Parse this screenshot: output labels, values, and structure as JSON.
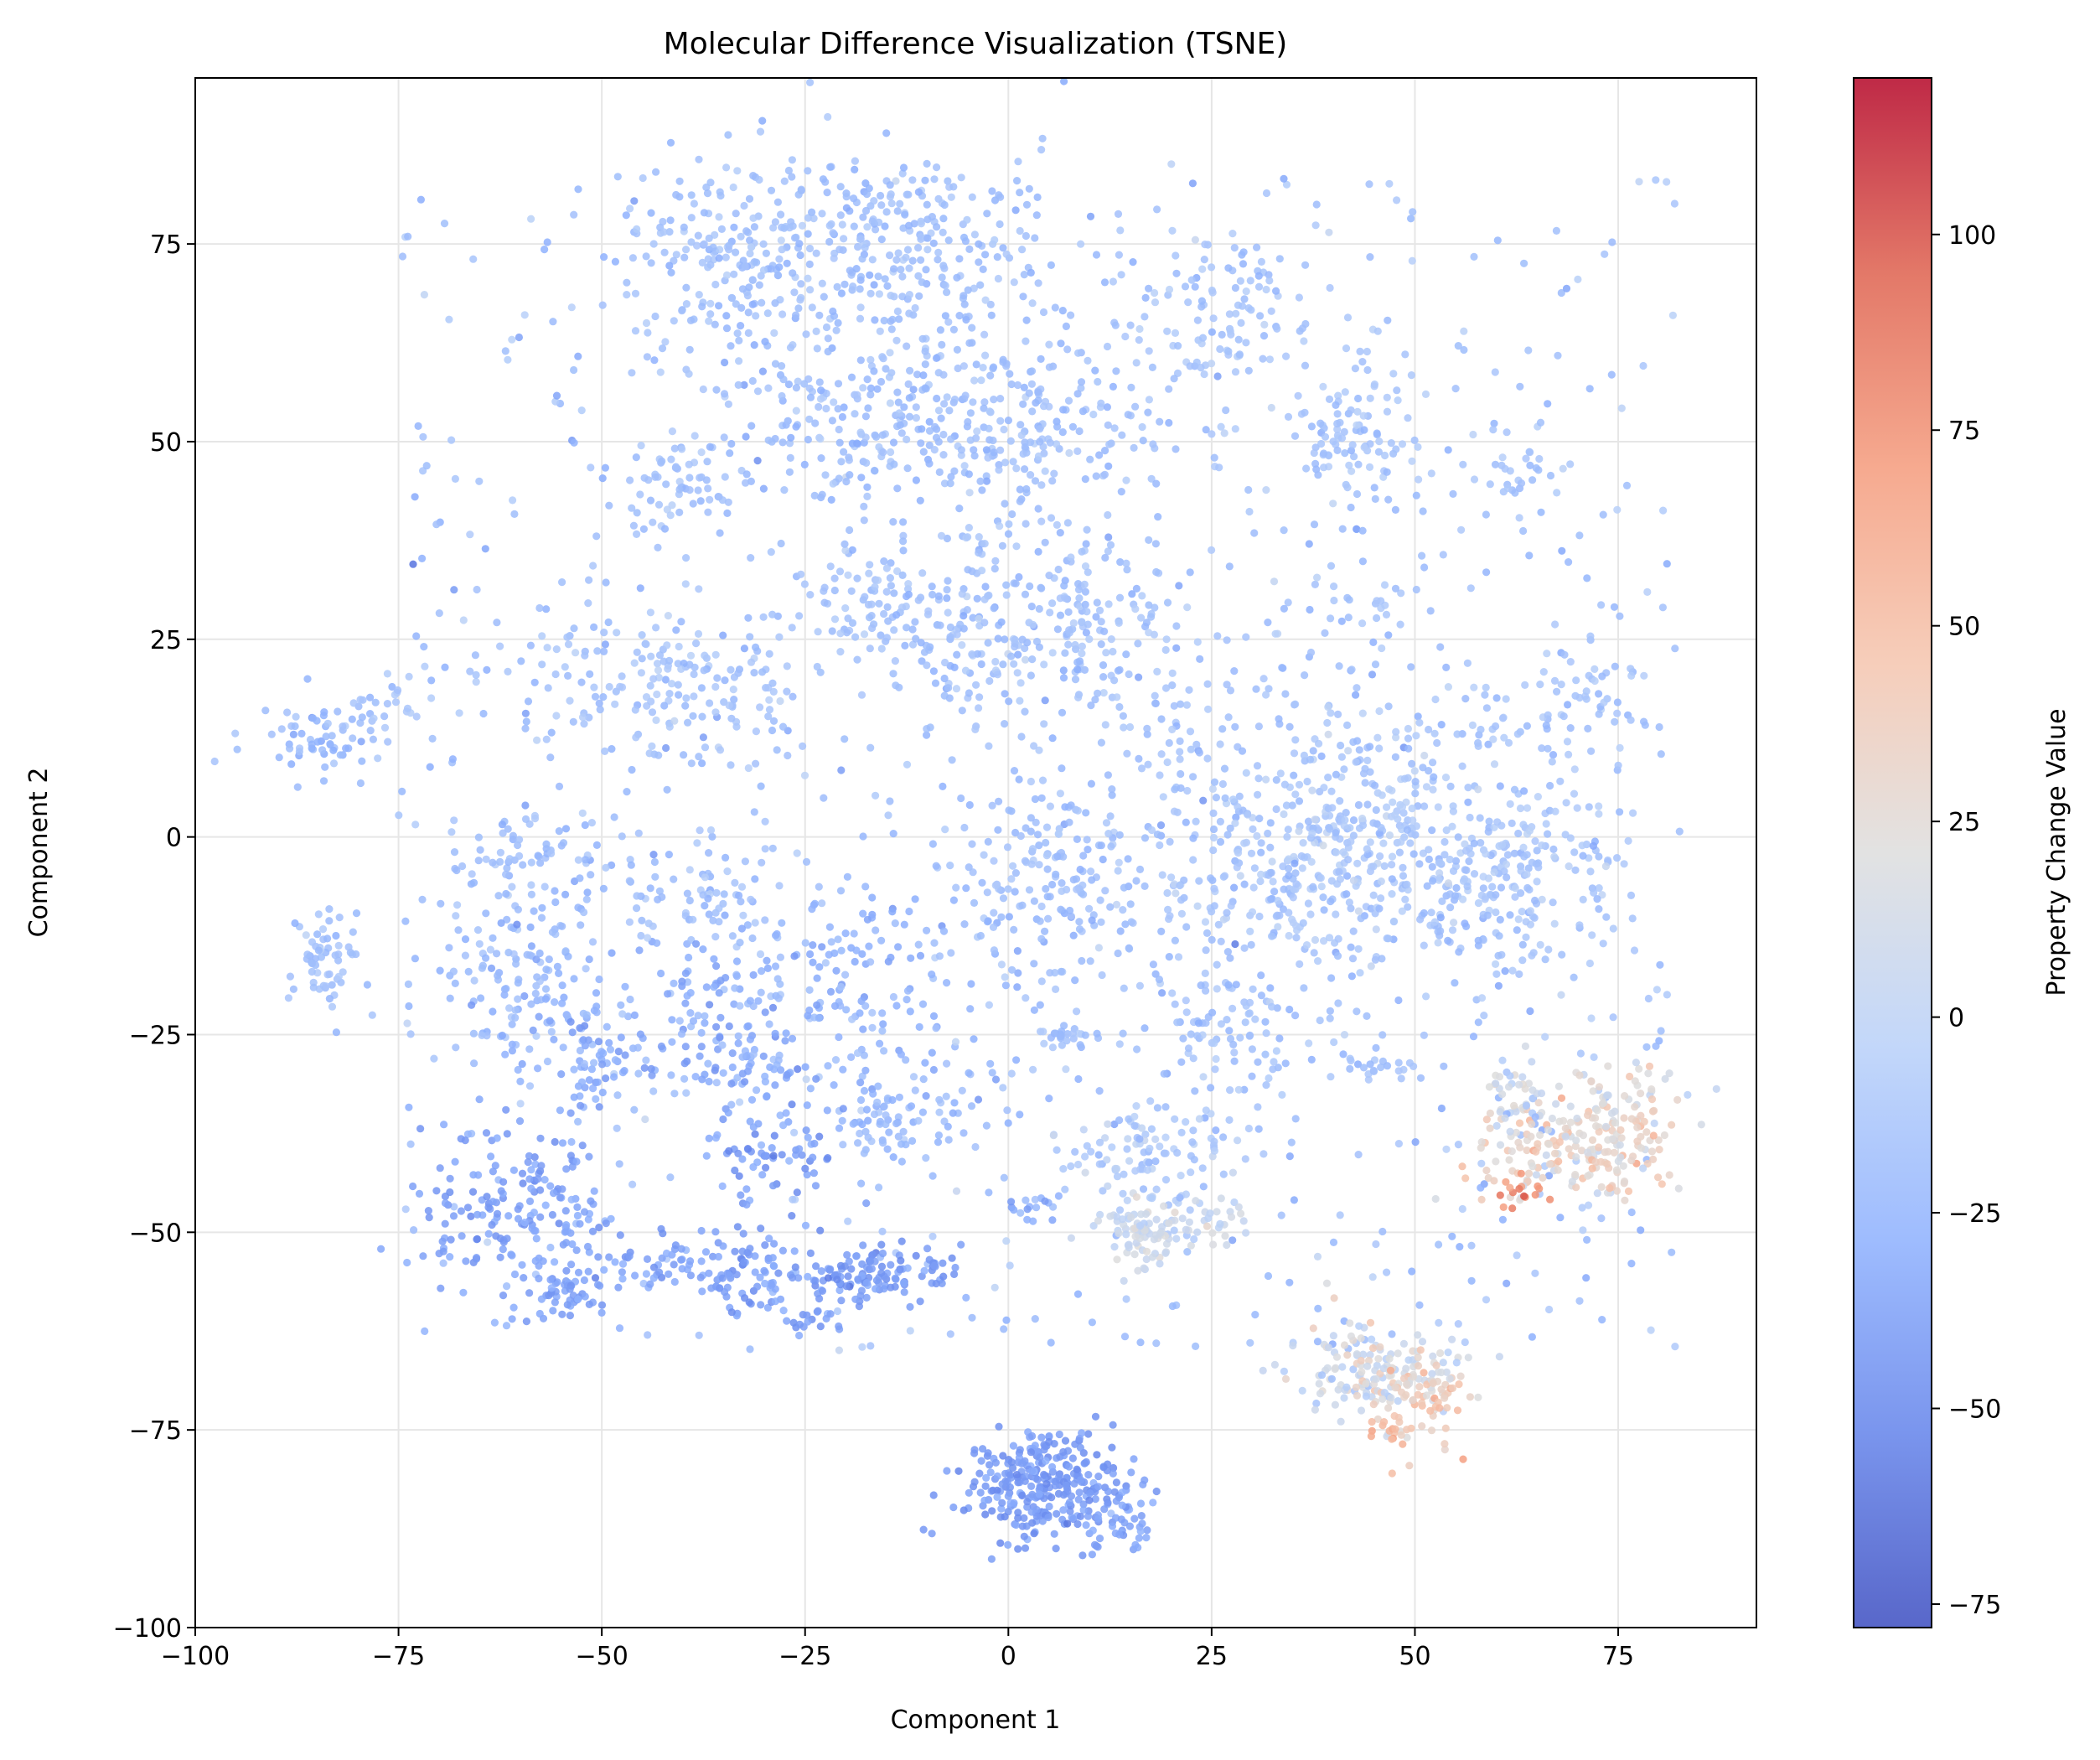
{
  "chart_data": {
    "type": "scatter",
    "title": "Molecular Difference Visualization (TSNE)",
    "xlabel": "Component 1",
    "ylabel": "Component 2",
    "xlim": [
      -100,
      92
    ],
    "ylim": [
      -100,
      96
    ],
    "xticks": [
      -100,
      -75,
      -50,
      -25,
      0,
      25,
      50,
      75
    ],
    "yticks": [
      -100,
      -75,
      -50,
      -25,
      0,
      25,
      50,
      75
    ],
    "grid": true,
    "colormap": "coolwarm",
    "colorbar": {
      "label": "Property Change Value",
      "range": [
        -78,
        120
      ],
      "ticks": [
        -75,
        -50,
        -25,
        0,
        25,
        50,
        75,
        100
      ]
    },
    "clusters": [
      {
        "cx": -13,
        "cy": 75,
        "sx": 12,
        "sy": 6,
        "n": 260,
        "v": -17,
        "vs": 6
      },
      {
        "cx": -32,
        "cy": 73,
        "sx": 9,
        "sy": 7,
        "n": 200,
        "v": -17,
        "vs": 6
      },
      {
        "cx": -2,
        "cy": 52,
        "sx": 11,
        "sy": 6,
        "n": 330,
        "v": -17,
        "vs": 6
      },
      {
        "cx": -40,
        "cy": 44,
        "sx": 4,
        "sy": 3,
        "n": 60,
        "v": -15,
        "vs": 6
      },
      {
        "cx": -24,
        "cy": 53,
        "sx": 6,
        "sy": 6,
        "n": 60,
        "v": -18,
        "vs": 6
      },
      {
        "cx": 27,
        "cy": 67,
        "sx": 6,
        "sy": 5,
        "n": 110,
        "v": -14,
        "vs": 6
      },
      {
        "cx": 42,
        "cy": 50,
        "sx": 5,
        "sy": 5,
        "n": 110,
        "v": -13,
        "vs": 6
      },
      {
        "cx": 63,
        "cy": 46,
        "sx": 4,
        "sy": 3,
        "n": 30,
        "v": -14,
        "vs": 6
      },
      {
        "cx": -17,
        "cy": 29,
        "sx": 6,
        "sy": 4,
        "n": 100,
        "v": -16,
        "vs": 6
      },
      {
        "cx": -4,
        "cy": 25,
        "sx": 5,
        "sy": 7,
        "n": 120,
        "v": -17,
        "vs": 7
      },
      {
        "cx": 10,
        "cy": 28,
        "sx": 5,
        "sy": 6,
        "n": 110,
        "v": -16,
        "vs": 6
      },
      {
        "cx": -38,
        "cy": 18,
        "sx": 7,
        "sy": 5,
        "n": 140,
        "v": -15,
        "vs": 7
      },
      {
        "cx": -51,
        "cy": 22,
        "sx": 5,
        "sy": 3,
        "n": 40,
        "v": -14,
        "vs": 7
      },
      {
        "cx": -85,
        "cy": 12,
        "sx": 4,
        "sy": 3,
        "n": 60,
        "v": -20,
        "vs": 6
      },
      {
        "cx": -77,
        "cy": 16,
        "sx": 3,
        "sy": 3,
        "n": 30,
        "v": -15,
        "vs": 6
      },
      {
        "cx": -84,
        "cy": -15,
        "sx": 2,
        "sy": 3,
        "n": 60,
        "v": -16,
        "vs": 6
      },
      {
        "cx": 36,
        "cy": -5,
        "sx": 9,
        "sy": 7,
        "n": 330,
        "v": -12,
        "vs": 7
      },
      {
        "cx": 60,
        "cy": -5,
        "sx": 9,
        "sy": 6,
        "n": 280,
        "v": -13,
        "vs": 7
      },
      {
        "cx": 45,
        "cy": 8,
        "sx": 6,
        "sy": 5,
        "n": 80,
        "v": -10,
        "vs": 8
      },
      {
        "cx": 5,
        "cy": -5,
        "sx": 7,
        "sy": 7,
        "n": 190,
        "v": -17,
        "vs": 6
      },
      {
        "cx": 22,
        "cy": 15,
        "sx": 8,
        "sy": 7,
        "n": 90,
        "v": -15,
        "vs": 6
      },
      {
        "cx": 73,
        "cy": 18,
        "sx": 4,
        "sy": 5,
        "n": 50,
        "v": -14,
        "vs": 7
      },
      {
        "cx": 42,
        "cy": 30,
        "sx": 6,
        "sy": 5,
        "n": 40,
        "v": -14,
        "vs": 6
      },
      {
        "cx": 60,
        "cy": 15,
        "sx": 5,
        "sy": 3,
        "n": 40,
        "v": -14,
        "vs": 6
      },
      {
        "cx": 28,
        "cy": -25,
        "sx": 5,
        "sy": 4,
        "n": 80,
        "v": -16,
        "vs": 6
      },
      {
        "cx": 8,
        "cy": -25,
        "sx": 2,
        "sy": 1,
        "n": 25,
        "v": -17,
        "vs": 5
      },
      {
        "cx": -60,
        "cy": -18,
        "sx": 6,
        "sy": 7,
        "n": 150,
        "v": -22,
        "vs": 7
      },
      {
        "cx": -58,
        "cy": -2,
        "sx": 6,
        "sy": 3,
        "n": 60,
        "v": -18,
        "vs": 6
      },
      {
        "cx": -51,
        "cy": -28,
        "sx": 3,
        "sy": 4,
        "n": 60,
        "v": -30,
        "vs": 7
      },
      {
        "cx": -37,
        "cy": -10,
        "sx": 5,
        "sy": 5,
        "n": 80,
        "v": -18,
        "vs": 7
      },
      {
        "cx": -33,
        "cy": -25,
        "sx": 6,
        "sy": 6,
        "n": 140,
        "v": -30,
        "vs": 8
      },
      {
        "cx": -18,
        "cy": -18,
        "sx": 6,
        "sy": 7,
        "n": 110,
        "v": -25,
        "vs": 8
      },
      {
        "cx": -16,
        "cy": -36,
        "sx": 3,
        "sy": 3,
        "n": 50,
        "v": -25,
        "vs": 6
      },
      {
        "cx": -28,
        "cy": -40,
        "sx": 4,
        "sy": 3,
        "n": 60,
        "v": -37,
        "vs": 7
      },
      {
        "cx": -60,
        "cy": -48,
        "sx": 6,
        "sy": 5,
        "n": 190,
        "v": -37,
        "vs": 6
      },
      {
        "cx": -54,
        "cy": -58,
        "sx": 2,
        "sy": 1.5,
        "n": 40,
        "v": -36,
        "vs": 5
      },
      {
        "cx": -42,
        "cy": -54,
        "sx": 5,
        "sy": 2,
        "n": 50,
        "v": -36,
        "vs": 6
      },
      {
        "cx": -31,
        "cy": -55,
        "sx": 3,
        "sy": 3,
        "n": 80,
        "v": -38,
        "vs": 6
      },
      {
        "cx": -17,
        "cy": -55,
        "sx": 4,
        "sy": 2,
        "n": 120,
        "v": -40,
        "vs": 6
      },
      {
        "cx": -24,
        "cy": -61,
        "sx": 1.5,
        "sy": 1,
        "n": 15,
        "v": -40,
        "vs": 5
      },
      {
        "cx": -8,
        "cy": -32,
        "sx": 5,
        "sy": 5,
        "n": 40,
        "v": -22,
        "vs": 7
      },
      {
        "cx": 5,
        "cy": -82,
        "sx": 5,
        "sy": 3.5,
        "n": 300,
        "v": -40,
        "vs": 6
      },
      {
        "cx": 14,
        "cy": -87,
        "sx": 2,
        "sy": 2,
        "n": 40,
        "v": -35,
        "vs": 6
      },
      {
        "cx": 17,
        "cy": -50,
        "sx": 3,
        "sy": 2.5,
        "n": 90,
        "v": 8,
        "vs": 8
      },
      {
        "cx": 25,
        "cy": -48,
        "sx": 3,
        "sy": 1.5,
        "n": 30,
        "v": 8,
        "vs": 8
      },
      {
        "cx": 17,
        "cy": -40,
        "sx": 6,
        "sy": 3,
        "n": 100,
        "v": -10,
        "vs": 8
      },
      {
        "cx": 3,
        "cy": -47,
        "sx": 2,
        "sy": 1.5,
        "n": 15,
        "v": -30,
        "vs": 6
      },
      {
        "cx": 45,
        "cy": -68,
        "sx": 5,
        "sy": 3,
        "n": 150,
        "v": 12,
        "vs": 14
      },
      {
        "cx": 51,
        "cy": -71,
        "sx": 3,
        "sy": 3,
        "n": 70,
        "v": 38,
        "vs": 12
      },
      {
        "cx": 47,
        "cy": -75,
        "sx": 1.5,
        "sy": 0.8,
        "n": 15,
        "v": 55,
        "vs": 8
      },
      {
        "cx": 70,
        "cy": -40,
        "sx": 6,
        "sy": 3,
        "n": 180,
        "v": 30,
        "vs": 12
      },
      {
        "cx": 76,
        "cy": -33,
        "sx": 4,
        "sy": 2.5,
        "n": 60,
        "v": 24,
        "vs": 12
      },
      {
        "cx": 62,
        "cy": -33,
        "sx": 2,
        "sy": 2,
        "n": 40,
        "v": 8,
        "vs": 15
      },
      {
        "cx": 63,
        "cy": -45,
        "sx": 2,
        "sy": 1,
        "n": 15,
        "v": 80,
        "vs": 10
      },
      {
        "cx": 44,
        "cy": -29,
        "sx": 3,
        "sy": 1,
        "n": 20,
        "v": -14,
        "vs": 6
      }
    ],
    "background": {
      "n": 800,
      "xmin": -75,
      "xmax": 82,
      "ymin": -65,
      "ymax": 85,
      "v": -18,
      "vs": 10
    }
  }
}
